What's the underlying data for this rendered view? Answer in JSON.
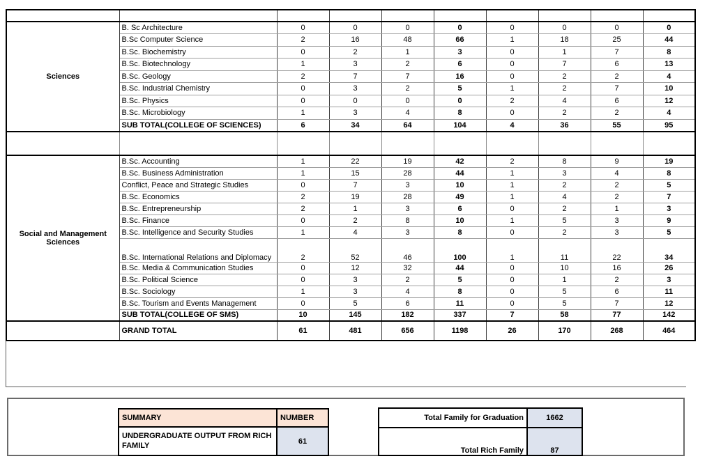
{
  "main_table": {
    "value_columns": 8,
    "bold_value_column_indexes": [
      3,
      7
    ],
    "sections": [
      {
        "category": "Sciences",
        "rows": [
          {
            "program": "B. Sc Architecture",
            "values": [
              0,
              0,
              0,
              0,
              0,
              0,
              0,
              0
            ]
          },
          {
            "program": "B.Sc Computer Science",
            "values": [
              2,
              16,
              48,
              66,
              1,
              18,
              25,
              44
            ]
          },
          {
            "program": "B.Sc. Biochemistry",
            "values": [
              0,
              2,
              1,
              3,
              0,
              1,
              7,
              8
            ]
          },
          {
            "program": "B.Sc. Biotechnology",
            "values": [
              1,
              3,
              2,
              6,
              0,
              7,
              6,
              13
            ]
          },
          {
            "program": "B.Sc. Geology",
            "values": [
              2,
              7,
              7,
              16,
              0,
              2,
              2,
              4
            ]
          },
          {
            "program": "B.Sc. Industrial Chemistry",
            "values": [
              0,
              3,
              2,
              5,
              1,
              2,
              7,
              10
            ]
          },
          {
            "program": "B.Sc. Physics",
            "values": [
              0,
              0,
              0,
              0,
              2,
              4,
              6,
              12
            ]
          },
          {
            "program": "B.Sc. Microbiology",
            "values": [
              1,
              3,
              4,
              8,
              0,
              2,
              2,
              4
            ]
          }
        ],
        "subtotal": {
          "label": "SUB TOTAL(COLLEGE OF SCIENCES)",
          "values": [
            6,
            34,
            64,
            104,
            4,
            36,
            55,
            95
          ]
        }
      },
      {
        "category": "Social and Management Sciences",
        "rows": [
          {
            "program": "B.Sc. Accounting",
            "values": [
              1,
              22,
              19,
              42,
              2,
              8,
              9,
              19
            ]
          },
          {
            "program": "B.Sc. Business Administration",
            "values": [
              1,
              15,
              28,
              44,
              1,
              3,
              4,
              8
            ]
          },
          {
            "program": "Conflict, Peace and Strategic Studies",
            "values": [
              0,
              7,
              3,
              10,
              1,
              2,
              2,
              5
            ]
          },
          {
            "program": "B.Sc. Economics",
            "values": [
              2,
              19,
              28,
              49,
              1,
              4,
              2,
              7
            ]
          },
          {
            "program": "B.Sc. Entrepreneurship",
            "values": [
              2,
              1,
              3,
              6,
              0,
              2,
              1,
              3
            ]
          },
          {
            "program": "B.Sc. Finance",
            "values": [
              0,
              2,
              8,
              10,
              1,
              5,
              3,
              9
            ]
          },
          {
            "program": "B.Sc. Intelligence and Security Studies",
            "values": [
              1,
              4,
              3,
              8,
              0,
              2,
              3,
              5
            ]
          },
          {
            "program": "B.Sc. International Relations and Diplomacy",
            "values": [
              2,
              52,
              46,
              100,
              1,
              11,
              22,
              34
            ],
            "tall": true
          },
          {
            "program": "B.Sc. Media & Communication Studies",
            "values": [
              0,
              12,
              32,
              44,
              0,
              10,
              16,
              26
            ]
          },
          {
            "program": "B.Sc. Political Science",
            "values": [
              0,
              3,
              2,
              5,
              0,
              1,
              2,
              3
            ]
          },
          {
            "program": "B.Sc. Sociology",
            "values": [
              1,
              3,
              4,
              8,
              0,
              5,
              6,
              11
            ]
          },
          {
            "program": "B.Sc. Tourism and Events Management",
            "values": [
              0,
              5,
              6,
              11,
              0,
              5,
              7,
              12
            ]
          }
        ],
        "subtotal": {
          "label": "SUB TOTAL(COLLEGE OF SMS)",
          "values": [
            10,
            145,
            182,
            337,
            7,
            58,
            77,
            142
          ]
        }
      }
    ],
    "grand_total": {
      "label": "GRAND TOTAL",
      "values": [
        61,
        481,
        656,
        1198,
        26,
        170,
        268,
        464
      ]
    }
  },
  "summary_left": {
    "header": {
      "label": "SUMMARY",
      "value_header": "NUMBER"
    },
    "row": {
      "label": "UNDERGRADUATE OUTPUT FROM RICH FAMILY",
      "value": "61"
    }
  },
  "summary_right": {
    "rows": [
      {
        "label": "Total Family for Graduation",
        "value": "1662"
      },
      {
        "label": "Total Rich Family",
        "value": "87"
      }
    ]
  },
  "colors": {
    "summary_header_fill": "#fce4d6",
    "summary_number_fill": "#dde3ee",
    "grid_line": "#9f9f9f",
    "section_border": "#000000"
  }
}
